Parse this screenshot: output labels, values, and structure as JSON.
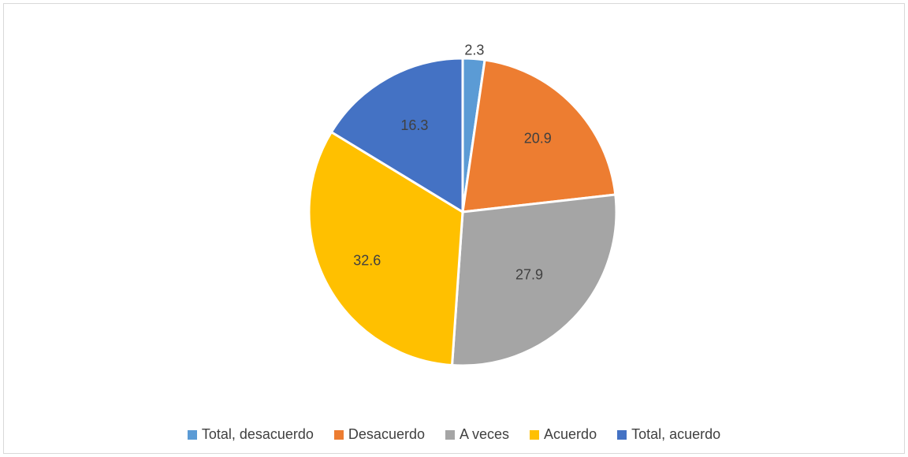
{
  "chart_data": {
    "type": "pie",
    "categories": [
      "Total, desacuerdo",
      "Desacuerdo",
      "A veces",
      "Acuerdo",
      "Total, acuerdo"
    ],
    "values": [
      2.3,
      20.9,
      27.9,
      32.6,
      16.3
    ],
    "labels": [
      "2.3",
      "20.9",
      "27.9",
      "32.6",
      "16.3"
    ],
    "colors": [
      "#5b9bd5",
      "#ed7d31",
      "#a5a5a5",
      "#ffc000",
      "#4472c4"
    ],
    "legend_position": "bottom"
  }
}
